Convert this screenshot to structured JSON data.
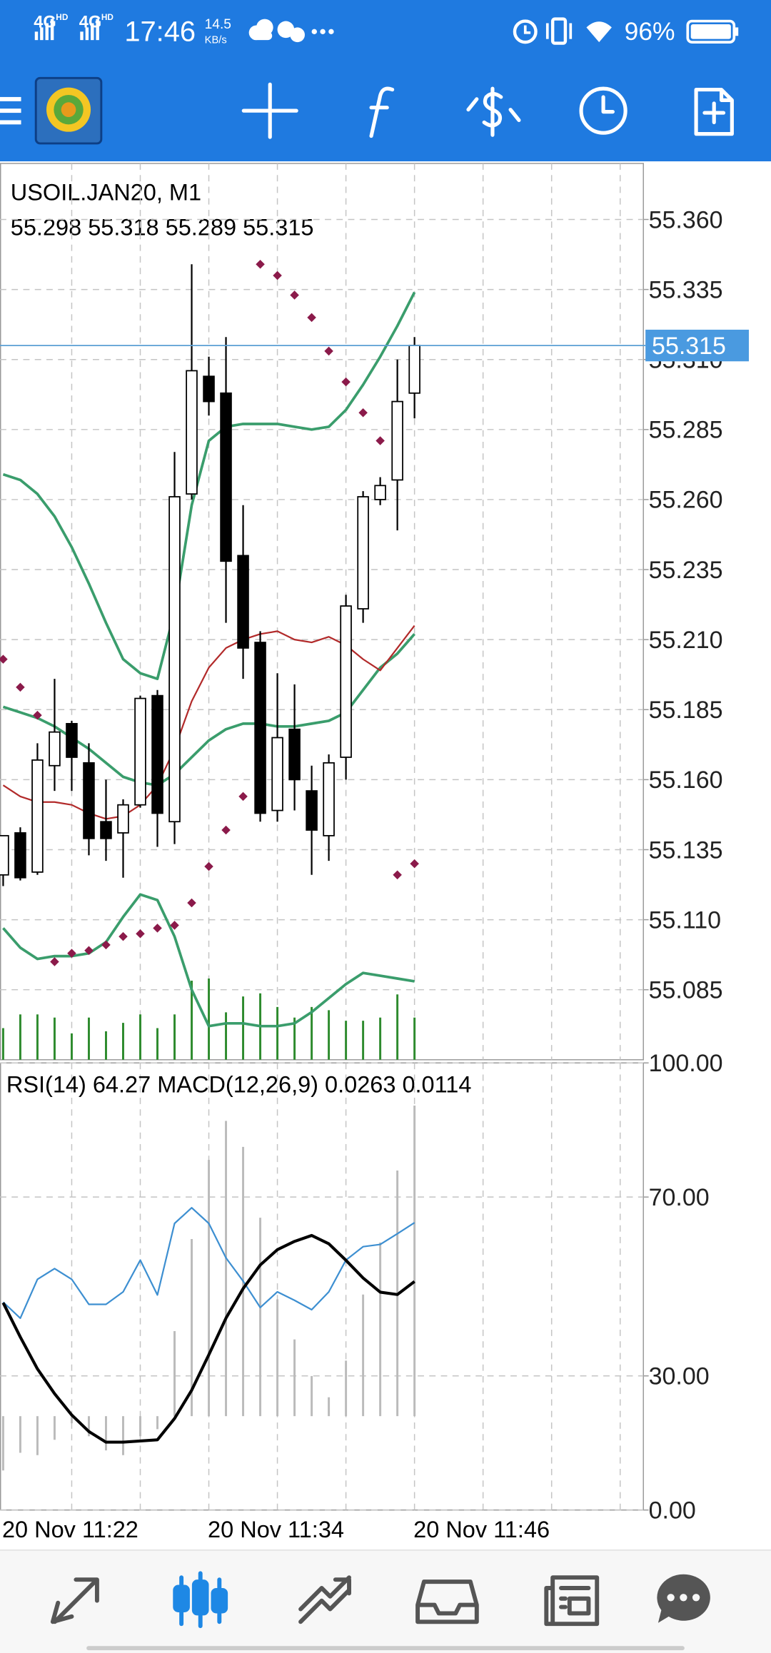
{
  "status_bar": {
    "network": [
      "4G",
      "4G"
    ],
    "network_sub": [
      "HD",
      "HD"
    ],
    "time": "17:46",
    "speed": "14.5",
    "speed_unit": "KB/s",
    "battery": "96%"
  },
  "chart_data": [
    {
      "type": "candlestick",
      "title": "USOIL.JAN20, M1",
      "subtitle": "55.298 55.318 55.289 55.315",
      "open": [
        55.126,
        55.141,
        55.127,
        55.165,
        55.18,
        55.166,
        55.145,
        55.141,
        55.151,
        55.19,
        55.145,
        55.262,
        55.304,
        55.298,
        55.24,
        55.209,
        55.149,
        55.178,
        55.156,
        55.14,
        55.168,
        55.221,
        55.26,
        55.267,
        55.298
      ],
      "high": [
        55.14,
        55.143,
        55.173,
        55.196,
        55.181,
        55.173,
        55.16,
        55.153,
        55.19,
        55.192,
        55.277,
        55.344,
        55.311,
        55.318,
        55.258,
        55.213,
        55.198,
        55.194,
        55.165,
        55.169,
        55.226,
        55.263,
        55.268,
        55.31,
        55.318
      ],
      "low": [
        55.122,
        55.124,
        55.126,
        55.156,
        55.156,
        55.133,
        55.131,
        55.125,
        55.15,
        55.136,
        55.137,
        55.26,
        55.29,
        55.216,
        55.196,
        55.145,
        55.145,
        55.149,
        55.126,
        55.131,
        55.16,
        55.216,
        55.258,
        55.249,
        55.289
      ],
      "close": [
        55.14,
        55.125,
        55.167,
        55.177,
        55.168,
        55.139,
        55.139,
        55.151,
        55.189,
        55.148,
        55.261,
        55.306,
        55.295,
        55.238,
        55.207,
        55.148,
        55.175,
        55.16,
        55.142,
        55.166,
        55.222,
        55.261,
        55.265,
        55.295,
        55.315
      ],
      "up_color": "#ffffff",
      "down_color": "#000000",
      "overlays": [
        {
          "color": "#3a9d6c",
          "values": [
            55.269,
            55.267,
            55.262,
            55.254,
            55.243,
            55.23,
            55.216,
            55.203,
            55.198,
            55.196,
            55.22,
            55.258,
            55.281,
            55.286,
            55.287,
            55.287,
            55.287,
            55.286,
            55.285,
            55.286,
            55.292,
            55.301,
            55.311,
            55.322,
            55.334
          ]
        },
        {
          "color": "#3a9d6c",
          "values": [
            55.186,
            55.184,
            55.182,
            55.179,
            55.175,
            55.171,
            55.166,
            55.161,
            55.159,
            55.158,
            55.162,
            55.168,
            55.174,
            55.178,
            55.18,
            55.18,
            55.179,
            55.179,
            55.18,
            55.181,
            55.184,
            55.192,
            55.2,
            55.205,
            55.212
          ]
        },
        {
          "color": "#3a9d6c",
          "values": [
            55.107,
            55.1,
            55.096,
            55.097,
            55.097,
            55.098,
            55.102,
            55.111,
            55.119,
            55.117,
            55.104,
            55.085,
            55.072,
            55.073,
            55.073,
            55.072,
            55.072,
            55.073,
            55.077,
            55.082,
            55.087,
            55.091,
            55.09,
            55.089,
            55.088
          ]
        },
        {
          "color": "#b22a2a",
          "values": [
            55.158,
            55.154,
            55.152,
            55.152,
            55.151,
            55.148,
            55.146,
            55.147,
            55.151,
            55.158,
            55.171,
            55.188,
            55.2,
            55.207,
            55.21,
            55.212,
            55.213,
            55.21,
            55.209,
            55.211,
            55.208,
            55.203,
            55.199,
            55.207,
            55.215
          ]
        }
      ],
      "sar": {
        "color": "#8b1a4a",
        "values": [
          55.203,
          55.193,
          55.183,
          55.095,
          55.098,
          55.099,
          55.101,
          55.104,
          55.105,
          55.107,
          55.108,
          55.116,
          55.129,
          55.142,
          55.154,
          55.344,
          55.34,
          55.333,
          55.325,
          55.313,
          55.302,
          55.291,
          55.281,
          55.126,
          55.13
        ]
      },
      "volume": {
        "color": "#2e8b2e",
        "values": [
          30,
          43,
          43,
          40,
          25,
          40,
          27,
          35,
          43,
          30,
          43,
          75,
          77,
          45,
          60,
          63,
          50,
          40,
          50,
          47,
          37,
          37,
          40,
          62,
          40
        ]
      },
      "current_price": 55.315,
      "ylim": [
        55.06,
        55.38
      ],
      "yticks": [
        {
          "value": 55.36,
          "label": "55.360"
        },
        {
          "value": 55.335,
          "label": "55.335"
        },
        {
          "value": 55.31,
          "label": "55.310"
        },
        {
          "value": 55.285,
          "label": "55.285"
        },
        {
          "value": 55.26,
          "label": "55.260"
        },
        {
          "value": 55.235,
          "label": "55.235"
        },
        {
          "value": 55.21,
          "label": "55.210"
        },
        {
          "value": 55.185,
          "label": "55.185"
        },
        {
          "value": 55.16,
          "label": "55.160"
        },
        {
          "value": 55.135,
          "label": "55.135"
        },
        {
          "value": 55.11,
          "label": "55.110"
        },
        {
          "value": 55.085,
          "label": "55.085"
        }
      ],
      "grid": true
    },
    {
      "type": "oscillator",
      "title": "RSI(14) 64.27 MACD(12,26,9) 0.0263 0.0114",
      "categories": [
        "20 Nov 11:22",
        null,
        null,
        null,
        null,
        null,
        null,
        null,
        null,
        null,
        null,
        null,
        "20 Nov 11:34",
        null,
        null,
        null,
        null,
        null,
        null,
        null,
        null,
        null,
        null,
        null,
        "20 Nov 11:46"
      ],
      "rsi": {
        "color": "#3d8fd1",
        "values": [
          46.5,
          42.9,
          51.6,
          54.0,
          51.6,
          46.0,
          46.0,
          48.8,
          55.9,
          48.1,
          64.1,
          67.6,
          64.1,
          56.4,
          51.2,
          45.3,
          48.8,
          46.9,
          44.8,
          48.8,
          55.9,
          58.9,
          59.4,
          61.8,
          64.27
        ]
      },
      "macd": {
        "color": "#bbbbbb",
        "values": [
          -0.0046,
          -0.0031,
          -0.0033,
          -0.002,
          -0.0006,
          -0.0017,
          -0.0029,
          -0.0033,
          -0.0017,
          -0.0011,
          0.0072,
          0.015,
          0.0217,
          0.025,
          0.0228,
          0.0168,
          0.0099,
          0.0065,
          0.0034,
          0.0016,
          0.0047,
          0.0103,
          0.0147,
          0.0208,
          0.0263
        ]
      },
      "signal": {
        "color": "#000000",
        "values": [
          0.0096,
          0.0067,
          0.004,
          0.0019,
          0.0001,
          -0.0013,
          -0.0022,
          -0.0022,
          -0.0021,
          -0.002,
          -0.0002,
          0.0022,
          0.0052,
          0.0083,
          0.0108,
          0.0128,
          0.0141,
          0.0148,
          0.0153,
          0.0146,
          0.0132,
          0.0117,
          0.0105,
          0.0103,
          0.0114
        ]
      },
      "ylim": [
        0,
        100
      ],
      "yticks": [
        {
          "value": 100,
          "label": "100.00"
        },
        {
          "value": 70,
          "label": "70.00"
        },
        {
          "value": 30,
          "label": "30.00"
        },
        {
          "value": 0,
          "label": "0.00"
        }
      ],
      "grid": true
    }
  ]
}
